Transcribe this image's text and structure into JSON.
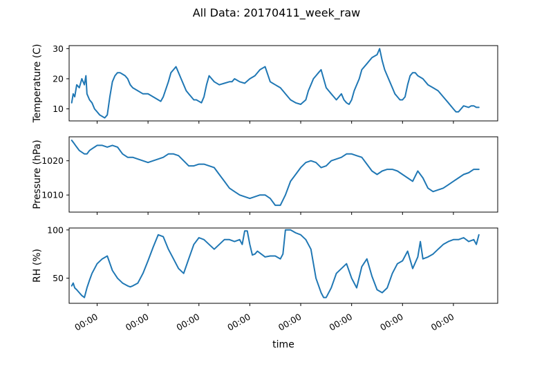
{
  "title": "All Data: 20170411_week_raw",
  "chart_data": [
    {
      "type": "line",
      "ylabel": "Temperature (C)",
      "ylim": [
        6,
        31
      ],
      "yticks": [
        10,
        20,
        30
      ],
      "xlim": [
        -0.55,
        7.87
      ],
      "xticks": [
        0,
        1,
        2,
        3,
        4,
        5,
        6,
        7
      ],
      "xtick_labels": [
        "00:00",
        "00:00",
        "00:00",
        "00:00",
        "00:00",
        "00:00",
        "00:00",
        "00:00"
      ],
      "show_xtick_labels": false,
      "color": "#1f77b4",
      "series": [
        {
          "x": [
            -0.5,
            -0.47,
            -0.44,
            -0.4,
            -0.35,
            -0.3,
            -0.25,
            -0.22,
            -0.2,
            -0.15,
            -0.1,
            -0.05,
            0,
            0.05,
            0.1,
            0.15,
            0.2,
            0.25,
            0.3,
            0.35,
            0.4,
            0.45,
            0.5,
            0.55,
            0.6,
            0.65,
            0.7,
            0.8,
            0.9,
            1.0,
            1.1,
            1.2,
            1.25,
            1.3,
            1.4,
            1.45,
            1.5,
            1.55,
            1.6,
            1.65,
            1.7,
            1.75,
            1.8,
            1.85,
            1.9,
            1.95,
            2.0,
            2.05,
            2.1,
            2.15,
            2.2,
            2.3,
            2.4,
            2.5,
            2.6,
            2.65,
            2.7,
            2.75,
            2.8,
            2.9,
            3.0,
            3.1,
            3.2,
            3.3,
            3.4,
            3.45,
            3.5,
            3.55,
            3.6,
            3.65,
            3.7,
            3.8,
            3.9,
            4.0,
            4.1,
            4.15,
            4.2,
            4.25,
            4.3,
            4.35,
            4.4,
            4.45,
            4.5,
            4.55,
            4.6,
            4.65,
            4.7,
            4.75,
            4.8,
            4.85,
            4.9,
            4.95,
            5.0,
            5.05,
            5.1,
            5.15,
            5.2,
            5.3,
            5.4,
            5.5,
            5.55,
            5.6,
            5.65,
            5.7,
            5.75,
            5.8,
            5.85,
            5.9,
            5.95,
            6.0,
            6.05,
            6.1,
            6.15,
            6.2,
            6.25,
            6.3,
            6.4,
            6.5,
            6.6,
            6.7,
            6.8,
            6.9,
            7.0,
            7.05,
            7.1,
            7.2,
            7.3,
            7.35,
            7.4,
            7.45,
            7.5
          ],
          "y": [
            12,
            15,
            14,
            18,
            17,
            20,
            18,
            21,
            15,
            13,
            12,
            10,
            9,
            8,
            7.5,
            7,
            8,
            14,
            19,
            21,
            22,
            22,
            21.5,
            21,
            20,
            18,
            17,
            16,
            15,
            15,
            14,
            13,
            12.5,
            14,
            19,
            22,
            23,
            24,
            22,
            20,
            18,
            16,
            15,
            14,
            13,
            13,
            12.5,
            12,
            14,
            18,
            21,
            19,
            18,
            18.5,
            19,
            19,
            20,
            19.5,
            19,
            18.5,
            20,
            21,
            23,
            24,
            19,
            18.5,
            18,
            17.5,
            17,
            16,
            15,
            13,
            12,
            11.5,
            13,
            16,
            18,
            20,
            21,
            22,
            23,
            20,
            17,
            16,
            15,
            14,
            13,
            14,
            15,
            13,
            12,
            11.5,
            13,
            16,
            18,
            20,
            23,
            25,
            27,
            28,
            30,
            26,
            23,
            21,
            19,
            17,
            15,
            14,
            13,
            13,
            14,
            18,
            21,
            22,
            22,
            21,
            20,
            18,
            17,
            16,
            14,
            12,
            10,
            9,
            9,
            11,
            10.5,
            11,
            11,
            10.5,
            10.5
          ]
        }
      ]
    },
    {
      "type": "line",
      "ylabel": "Pressure (hPa)",
      "ylim": [
        1005,
        1027
      ],
      "yticks": [
        1010,
        1020
      ],
      "xlim": [
        -0.55,
        7.87
      ],
      "xticks": [
        0,
        1,
        2,
        3,
        4,
        5,
        6,
        7
      ],
      "xtick_labels": [
        "00:00",
        "00:00",
        "00:00",
        "00:00",
        "00:00",
        "00:00",
        "00:00",
        "00:00"
      ],
      "show_xtick_labels": false,
      "color": "#1f77b4",
      "series": [
        {
          "x": [
            -0.5,
            -0.45,
            -0.4,
            -0.35,
            -0.3,
            -0.25,
            -0.2,
            -0.15,
            -0.1,
            -0.05,
            0,
            0.1,
            0.2,
            0.3,
            0.4,
            0.5,
            0.6,
            0.7,
            0.8,
            0.9,
            1.0,
            1.1,
            1.2,
            1.3,
            1.4,
            1.5,
            1.6,
            1.7,
            1.8,
            1.9,
            2.0,
            2.1,
            2.2,
            2.3,
            2.4,
            2.5,
            2.6,
            2.7,
            2.8,
            2.9,
            3.0,
            3.1,
            3.2,
            3.3,
            3.4,
            3.5,
            3.6,
            3.7,
            3.8,
            3.9,
            4.0,
            4.1,
            4.2,
            4.3,
            4.4,
            4.5,
            4.6,
            4.7,
            4.8,
            4.9,
            5.0,
            5.1,
            5.2,
            5.3,
            5.4,
            5.5,
            5.6,
            5.7,
            5.8,
            5.9,
            6.0,
            6.1,
            6.2,
            6.3,
            6.4,
            6.5,
            6.6,
            6.7,
            6.8,
            6.9,
            7.0,
            7.1,
            7.2,
            7.3,
            7.4,
            7.5
          ],
          "y": [
            1026,
            1025,
            1024,
            1023,
            1022.5,
            1022,
            1022,
            1023,
            1023.5,
            1024,
            1024.5,
            1024.5,
            1024,
            1024.5,
            1024,
            1022,
            1021,
            1021,
            1020.5,
            1020,
            1019.5,
            1020,
            1020.5,
            1021,
            1022,
            1022,
            1021.5,
            1020,
            1018.5,
            1018.5,
            1019,
            1019,
            1018.5,
            1018,
            1016,
            1014,
            1012,
            1011,
            1010,
            1009.5,
            1009,
            1009.5,
            1010,
            1010,
            1009,
            1007,
            1007,
            1010,
            1014,
            1016,
            1018,
            1019.5,
            1020,
            1019.5,
            1018,
            1018.5,
            1020,
            1020.5,
            1021,
            1022,
            1022,
            1021.5,
            1021,
            1019,
            1017,
            1016,
            1017,
            1017.5,
            1017.5,
            1017,
            1016,
            1015,
            1014,
            1017,
            1015,
            1012,
            1011,
            1011.5,
            1012,
            1013,
            1014,
            1015,
            1016,
            1016.5,
            1017.5,
            1017.5
          ]
        }
      ]
    },
    {
      "type": "line",
      "ylabel": "RH (%)",
      "ylim": [
        24,
        102
      ],
      "yticks": [
        50,
        100
      ],
      "xlim": [
        -0.55,
        7.87
      ],
      "xticks": [
        0,
        1,
        2,
        3,
        4,
        5,
        6,
        7
      ],
      "xtick_labels": [
        "00:00",
        "00:00",
        "00:00",
        "00:00",
        "00:00",
        "00:00",
        "00:00",
        "00:00"
      ],
      "show_xtick_labels": true,
      "xlabel": "time",
      "color": "#1f77b4",
      "series": [
        {
          "x": [
            -0.5,
            -0.47,
            -0.44,
            -0.4,
            -0.35,
            -0.3,
            -0.25,
            -0.2,
            -0.15,
            -0.1,
            -0.05,
            0,
            0.1,
            0.2,
            0.3,
            0.4,
            0.5,
            0.6,
            0.65,
            0.7,
            0.8,
            0.9,
            1.0,
            1.1,
            1.2,
            1.3,
            1.4,
            1.5,
            1.6,
            1.7,
            1.8,
            1.9,
            2.0,
            2.1,
            2.2,
            2.3,
            2.4,
            2.5,
            2.6,
            2.7,
            2.8,
            2.85,
            2.9,
            2.95,
            3.0,
            3.05,
            3.1,
            3.15,
            3.2,
            3.3,
            3.4,
            3.5,
            3.6,
            3.65,
            3.7,
            3.75,
            3.8,
            3.9,
            4.0,
            4.1,
            4.2,
            4.3,
            4.4,
            4.45,
            4.5,
            4.6,
            4.7,
            4.8,
            4.9,
            5.0,
            5.1,
            5.2,
            5.3,
            5.4,
            5.5,
            5.6,
            5.7,
            5.8,
            5.9,
            6.0,
            6.1,
            6.2,
            6.3,
            6.35,
            6.4,
            6.5,
            6.6,
            6.7,
            6.8,
            6.9,
            7.0,
            7.1,
            7.2,
            7.3,
            7.4,
            7.45,
            7.5
          ],
          "y": [
            42,
            45,
            40,
            38,
            35,
            32,
            30,
            40,
            48,
            55,
            60,
            65,
            70,
            73,
            58,
            50,
            45,
            42,
            41,
            42,
            45,
            55,
            68,
            82,
            95,
            93,
            80,
            70,
            60,
            55,
            70,
            85,
            92,
            90,
            85,
            80,
            85,
            90,
            90,
            88,
            90,
            85,
            99,
            99,
            85,
            74,
            75,
            78,
            76,
            72,
            73,
            73,
            70,
            75,
            100,
            100,
            100,
            97,
            95,
            90,
            80,
            50,
            35,
            30,
            30,
            40,
            55,
            60,
            65,
            50,
            40,
            62,
            70,
            52,
            38,
            35,
            40,
            55,
            65,
            68,
            78,
            60,
            72,
            88,
            70,
            72,
            75,
            80,
            85,
            88,
            90,
            90,
            92,
            88,
            90,
            85,
            95
          ]
        }
      ]
    }
  ]
}
